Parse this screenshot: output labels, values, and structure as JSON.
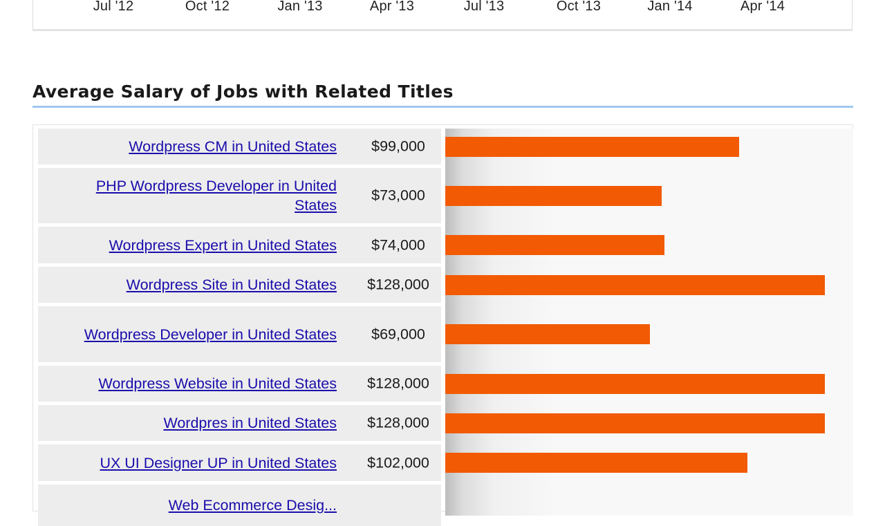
{
  "timeline": {
    "ticks": [
      "Jul '12",
      "Oct '12",
      "Jan '13",
      "Apr '13",
      "Jul '13",
      "Oct '13",
      "Jan '14",
      "Apr '14"
    ]
  },
  "section": {
    "title": "Average Salary of Jobs with Related Titles"
  },
  "colors": {
    "bar": "#f25a04",
    "link": "#1a0dab",
    "rule": "#9ec8f0"
  },
  "chart_data": {
    "type": "bar",
    "orientation": "horizontal",
    "title": "Average Salary of Jobs with Related Titles",
    "max_value": 128000,
    "categories": [
      "Wordpress CM in United States",
      "PHP Wordpress Developer in United States",
      "Wordpress Expert in United States",
      "Wordpress Site in United States",
      "Wordpress Developer in United States",
      "Wordpress Website in United States",
      "Wordpres in United States",
      "UX UI Designer UP in United States",
      "Web Ecommerce Desig..."
    ],
    "values": [
      99000,
      73000,
      74000,
      128000,
      69000,
      128000,
      128000,
      102000,
      null
    ],
    "value_labels": [
      "$99,000",
      "$73,000",
      "$74,000",
      "$128,000",
      "$69,000",
      "$128,000",
      "$128,000",
      "$102,000",
      ""
    ]
  }
}
